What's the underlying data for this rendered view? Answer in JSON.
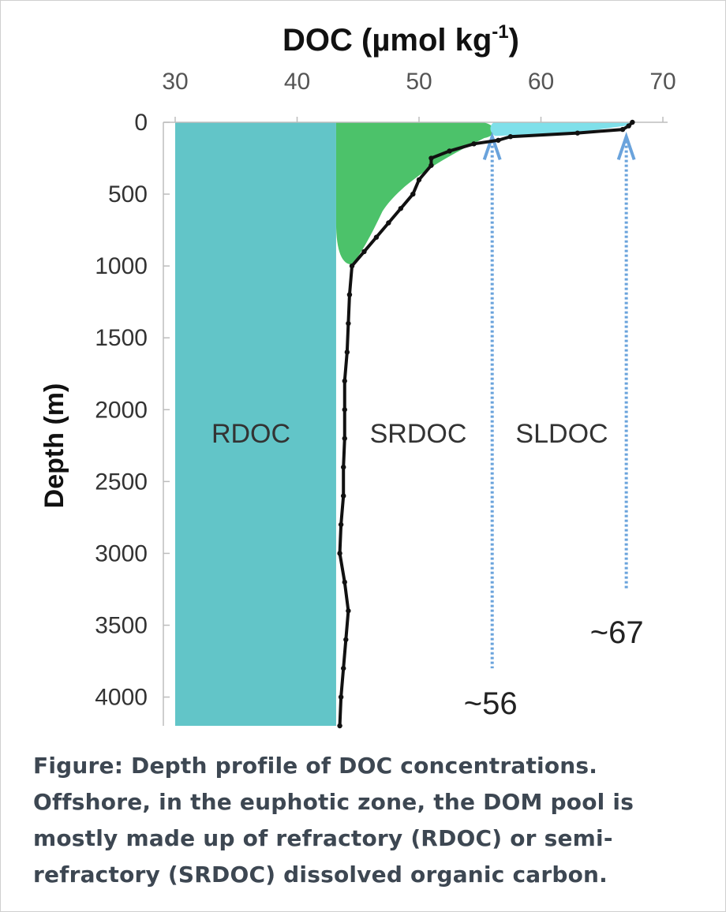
{
  "chart_data": {
    "type": "area",
    "title_main": "DOC (µmol kg",
    "title_sup": "-1",
    "title_close": ")",
    "xlabel": "DOC (µmol kg-1)",
    "ylabel": "Depth (m)",
    "x_axis_position": "top",
    "y_axis_inverted": true,
    "xlim": [
      30,
      70
    ],
    "ylim": [
      0,
      4200
    ],
    "x_ticks": [
      30,
      40,
      50,
      60,
      70
    ],
    "y_ticks": [
      0,
      500,
      1000,
      1500,
      2000,
      2500,
      3000,
      3500,
      4000
    ],
    "grid": false,
    "profile": {
      "name": "DOC",
      "depth": [
        0,
        25,
        50,
        75,
        100,
        125,
        150,
        200,
        250,
        300,
        400,
        500,
        600,
        700,
        800,
        900,
        1000,
        1200,
        1400,
        1600,
        1800,
        2000,
        2200,
        2400,
        2600,
        2800,
        3000,
        3200,
        3400,
        3600,
        3800,
        4000,
        4200
      ],
      "doc": [
        67.5,
        67.2,
        66.7,
        63.0,
        57.5,
        56.5,
        54.5,
        52.5,
        51.0,
        51.0,
        50.0,
        49.5,
        48.5,
        47.5,
        46.5,
        45.5,
        44.5,
        44.3,
        44.2,
        44.1,
        43.9,
        43.9,
        43.9,
        43.8,
        43.8,
        43.6,
        43.5,
        43.9,
        44.2,
        44.0,
        43.8,
        43.6,
        43.5
      ]
    },
    "regions": [
      {
        "label": "RDOC",
        "color": "#62c5c8",
        "x_from": 30,
        "x_to": 43.2
      },
      {
        "label": "SRDOC",
        "color": "#4cc26a"
      },
      {
        "label": "SLDOC",
        "color": "#7fe0ea"
      }
    ],
    "markers": [
      {
        "label": "~56",
        "x": 56
      },
      {
        "label": "~67",
        "x": 67
      }
    ],
    "colors": {
      "rdoc": "#62c5c8",
      "srdoc": "#4cc26a",
      "sldoc": "#7fe0ea",
      "line": "#111111",
      "marker": "#6aa3dc",
      "axis_text": "#555555"
    }
  },
  "caption": "Figure: Depth profile of DOC concentrations. Offshore, in the euphotic zone, the DOM pool is mostly made up of refractory (RDOC) or semi-refractory (SRDOC) dissolved organic carbon."
}
